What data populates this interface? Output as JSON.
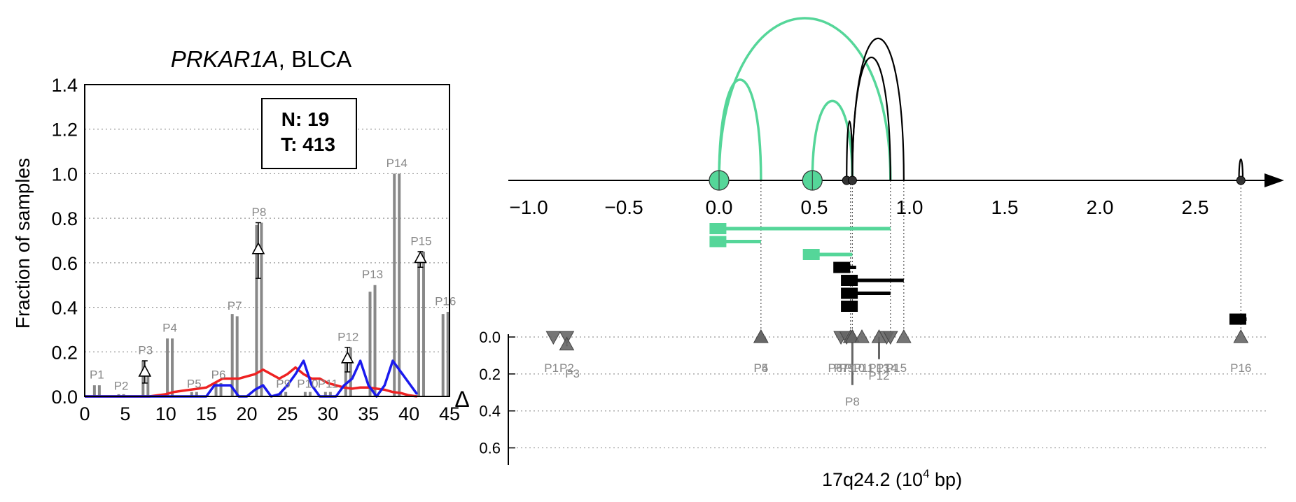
{
  "colors": {
    "gray_bars": "#888888",
    "red": "#ee2222",
    "blue": "#1a1aee",
    "green": "#55d699",
    "black": "#000000",
    "triangle": "#666666",
    "grid": "#999999"
  },
  "chart_data": [
    {
      "type": "bar",
      "title_gene": "PRKAR1A",
      "title_rest": ", BLCA",
      "xlabel": "",
      "ylabel": "Fraction of samples",
      "xlim": [
        0,
        45
      ],
      "ylim": [
        0,
        1.4
      ],
      "xticks": [
        "0",
        "5",
        "10",
        "15",
        "20",
        "25",
        "30",
        "35",
        "40",
        "45"
      ],
      "yticks": [
        "0.0",
        "0.2",
        "0.4",
        "0.6",
        "0.8",
        "1.0",
        "1.2",
        "1.4"
      ],
      "grid": "horizontal dotted",
      "stats_box": {
        "n_label": "N: 19",
        "t_label": "T: 413"
      },
      "peaks": [
        {
          "label": "P1",
          "x": 1.5,
          "values": [
            0.05,
            0.05
          ],
          "label_y": 0.08
        },
        {
          "label": "P2",
          "x": 4.5,
          "values": [
            0.01,
            0.01
          ],
          "label_y": 0.03
        },
        {
          "label": "P3",
          "x": 7.5,
          "values": [
            0.16,
            0.09
          ],
          "label_y": 0.19,
          "delta": 0.11,
          "delta_err": [
            0.06,
            0.16
          ]
        },
        {
          "label": "P4",
          "x": 10.5,
          "values": [
            0.26,
            0.26
          ],
          "label_y": 0.29
        },
        {
          "label": "P5",
          "x": 13.5,
          "values": [
            0.02,
            0.02
          ],
          "label_y": 0.04
        },
        {
          "label": "P6",
          "x": 16.5,
          "values": [
            0.06,
            0.06
          ],
          "label_y": 0.08
        },
        {
          "label": "P7",
          "x": 18.5,
          "values": [
            0.37,
            0.36
          ],
          "label_y": 0.39
        },
        {
          "label": "P8",
          "x": 21.5,
          "values": [
            0.77,
            0.78
          ],
          "label_y": 0.81,
          "delta": 0.66,
          "delta_err": [
            0.53,
            0.78
          ]
        },
        {
          "label": "P9",
          "x": 24.5,
          "values": [
            0.02,
            0.02
          ],
          "label_y": 0.04
        },
        {
          "label": "P10",
          "x": 27.5,
          "values": [
            0.02,
            0.02
          ],
          "label_y": 0.04
        },
        {
          "label": "P11",
          "x": 30.0,
          "values": [
            0.02,
            0.02
          ],
          "label_y": 0.04
        },
        {
          "label": "P12",
          "x": 32.5,
          "values": [
            0.16,
            0.22
          ],
          "label_y": 0.25,
          "delta": 0.17,
          "delta_err": [
            0.11,
            0.22
          ]
        },
        {
          "label": "P13",
          "x": 35.5,
          "values": [
            0.47,
            0.5
          ],
          "label_y": 0.53
        },
        {
          "label": "P14",
          "x": 38.5,
          "values": [
            1.0,
            1.0
          ],
          "label_y": 1.03
        },
        {
          "label": "P15",
          "x": 41.5,
          "values": [
            0.6,
            0.65
          ],
          "label_y": 0.68,
          "delta": 0.62,
          "delta_err": [
            0.58,
            0.65
          ]
        },
        {
          "label": "P16",
          "x": 44.5,
          "values": [
            0.37,
            0.38
          ],
          "label_y": 0.41
        }
      ],
      "series": [
        {
          "color": "red",
          "x": [
            0,
            1,
            2,
            3,
            4,
            5,
            6,
            7,
            8,
            9,
            10,
            11,
            12,
            13,
            14,
            15,
            16,
            17,
            18,
            19,
            20,
            21,
            22,
            23,
            24,
            25,
            26,
            27,
            28,
            29,
            30,
            31,
            32,
            33,
            34,
            35,
            36,
            37,
            38,
            39,
            40,
            41
          ],
          "y": [
            0,
            0,
            0,
            0,
            0,
            0,
            0,
            0,
            0,
            0.005,
            0.01,
            0.02,
            0.025,
            0.03,
            0.035,
            0.04,
            0.06,
            0.08,
            0.08,
            0.08,
            0.09,
            0.1,
            0.12,
            0.1,
            0.08,
            0.1,
            0.13,
            0.1,
            0.08,
            0.08,
            0.06,
            0.05,
            0.04,
            0.035,
            0.04,
            0.04,
            0.035,
            0.03,
            0.02,
            0.015,
            0.005,
            0
          ]
        },
        {
          "color": "blue",
          "x": [
            0,
            1,
            2,
            3,
            4,
            5,
            6,
            7,
            8,
            9,
            10,
            11,
            12,
            13,
            14,
            15,
            16,
            17,
            18,
            19,
            20,
            21,
            22,
            23,
            24,
            25,
            26,
            27,
            28,
            29,
            30,
            31,
            32,
            33,
            34,
            35,
            36,
            37,
            38,
            39,
            40,
            41
          ],
          "y": [
            0,
            0,
            0,
            0,
            0,
            0,
            0,
            0,
            0,
            0,
            0,
            0,
            0,
            0,
            0,
            0,
            0.05,
            0.05,
            0.05,
            0,
            0,
            0.03,
            0.05,
            0,
            0.01,
            0.05,
            0.1,
            0.16,
            0.05,
            0,
            0,
            0,
            0.05,
            0.08,
            0.16,
            0.05,
            0,
            0.05,
            0.16,
            0.11,
            0.06,
            0.01
          ]
        }
      ]
    },
    {
      "type": "scatter",
      "xlabel": "17q24.2 (10",
      "xlabel_exp": "4",
      "xlabel_suffix": " bp)",
      "ylabel": "Δ",
      "xlim": [
        -1.05,
        2.92
      ],
      "xticks": [
        "−1.0",
        "−0.5",
        "0.0",
        "0.5",
        "1.0",
        "1.5",
        "2.0",
        "2.5"
      ],
      "xtick_values": [
        -1.0,
        -0.5,
        0.0,
        0.5,
        1.0,
        1.5,
        2.0,
        2.5
      ],
      "delta_ylim": [
        0.0,
        0.7
      ],
      "delta_yticks": [
        "0.0",
        "0.2",
        "0.4",
        "0.6"
      ],
      "delta_ytick_values": [
        0.0,
        0.2,
        0.4,
        0.6
      ],
      "green_arcs": [
        {
          "x1": 0.0,
          "x2": 0.22,
          "height": 0.9
        },
        {
          "x1": 0.0,
          "x2": 0.9,
          "height": 1.45
        },
        {
          "x1": 0.49,
          "x2": 0.7,
          "height": 0.71
        }
      ],
      "black_arcs": [
        {
          "x1": 0.67,
          "x2": 0.7,
          "height": 0.53
        },
        {
          "x1": 0.7,
          "x2": 0.9,
          "height": 1.1
        },
        {
          "x1": 0.7,
          "x2": 0.97,
          "height": 1.27
        },
        {
          "x1": 2.73,
          "x2": 2.75,
          "height": 0.19
        }
      ],
      "circles_green": [
        0.0,
        0.49
      ],
      "circles_black": [
        0.67,
        0.7,
        2.74
      ],
      "guide_lines": [
        0.22,
        0.69,
        0.7,
        0.9,
        0.97,
        2.74
      ],
      "green_bars": [
        {
          "start": -0.05,
          "end": 0.9,
          "row": 0
        },
        {
          "start": -0.05,
          "end": 0.22,
          "row": 1
        },
        {
          "start": 0.44,
          "end": 0.7,
          "row": 2
        }
      ],
      "black_bars": [
        {
          "start": 0.6,
          "end": 0.72,
          "row": 3
        },
        {
          "start": 0.64,
          "end": 0.97,
          "row": 4
        },
        {
          "start": 0.64,
          "end": 0.9,
          "row": 5
        },
        {
          "start": 0.64,
          "end": 0.72,
          "row": 6
        },
        {
          "start": 2.68,
          "end": 2.77,
          "row": 7
        }
      ],
      "points": [
        {
          "label": "P1",
          "x": -0.87,
          "dir": "down",
          "delta": 0.0,
          "err": 0.0
        },
        {
          "label": "P2",
          "x": -0.8,
          "dir": "down",
          "delta": 0.0,
          "err": 0.0
        },
        {
          "label": "P3",
          "x": -0.8,
          "dir": "up",
          "delta": 0.04,
          "err": 0.05
        },
        {
          "label": "P4",
          "x": 0.22,
          "dir": "up",
          "delta": 0.0,
          "err": 0.0
        },
        {
          "label": "P5",
          "x": 0.22,
          "dir": "up",
          "delta": 0.0,
          "err": 0.0
        },
        {
          "label": "P6",
          "x": 0.64,
          "dir": "down",
          "delta": 0.0,
          "err": 0.0
        },
        {
          "label": "P7",
          "x": 0.67,
          "dir": "down",
          "delta": 0.0,
          "err": 0.0
        },
        {
          "label": "P8",
          "x": 0.7,
          "dir": "up",
          "delta": 0.0,
          "err": 0.26
        },
        {
          "label": "P9",
          "x": 0.69,
          "dir": "up",
          "delta": 0.0,
          "err": 0.0
        },
        {
          "label": "P10",
          "x": 0.7,
          "dir": "up",
          "delta": 0.0,
          "err": 0.0
        },
        {
          "label": "P11",
          "x": 0.75,
          "dir": "up",
          "delta": 0.0,
          "err": 0.0
        },
        {
          "label": "P12",
          "x": 0.84,
          "dir": "up",
          "delta": 0.0,
          "err": 0.12
        },
        {
          "label": "P13",
          "x": 0.88,
          "dir": "down",
          "delta": 0.0,
          "err": 0.0
        },
        {
          "label": "P14",
          "x": 0.9,
          "dir": "down",
          "delta": 0.0,
          "err": 0.0
        },
        {
          "label": "P15",
          "x": 0.97,
          "dir": "up",
          "delta": 0.0,
          "err": 0.0
        },
        {
          "label": "P16",
          "x": 2.74,
          "dir": "up",
          "delta": 0.0,
          "err": 0.0
        }
      ],
      "point_labels": [
        {
          "text": "P1",
          "x": -0.88,
          "delta": 0.19
        },
        {
          "text": "P2",
          "x": -0.8,
          "delta": 0.19
        },
        {
          "text": "P3",
          "x": -0.77,
          "delta": 0.22
        },
        {
          "text": "P4",
          "x": 0.22,
          "delta": 0.19
        },
        {
          "text": "P5",
          "x": 0.22,
          "delta": 0.19
        },
        {
          "text": "P6",
          "x": 0.61,
          "delta": 0.19
        },
        {
          "text": "P7",
          "x": 0.64,
          "delta": 0.19
        },
        {
          "text": "P8",
          "x": 0.7,
          "delta": 0.37
        },
        {
          "text": "P9",
          "x": 0.67,
          "delta": 0.19
        },
        {
          "text": "P10",
          "x": 0.71,
          "delta": 0.19
        },
        {
          "text": "P11",
          "x": 0.76,
          "delta": 0.19
        },
        {
          "text": "P12",
          "x": 0.84,
          "delta": 0.23
        },
        {
          "text": "P13",
          "x": 0.84,
          "delta": 0.19
        },
        {
          "text": "P14",
          "x": 0.88,
          "delta": 0.19
        },
        {
          "text": "P15",
          "x": 0.93,
          "delta": 0.19
        },
        {
          "text": "P16",
          "x": 2.74,
          "delta": 0.19
        }
      ]
    }
  ]
}
